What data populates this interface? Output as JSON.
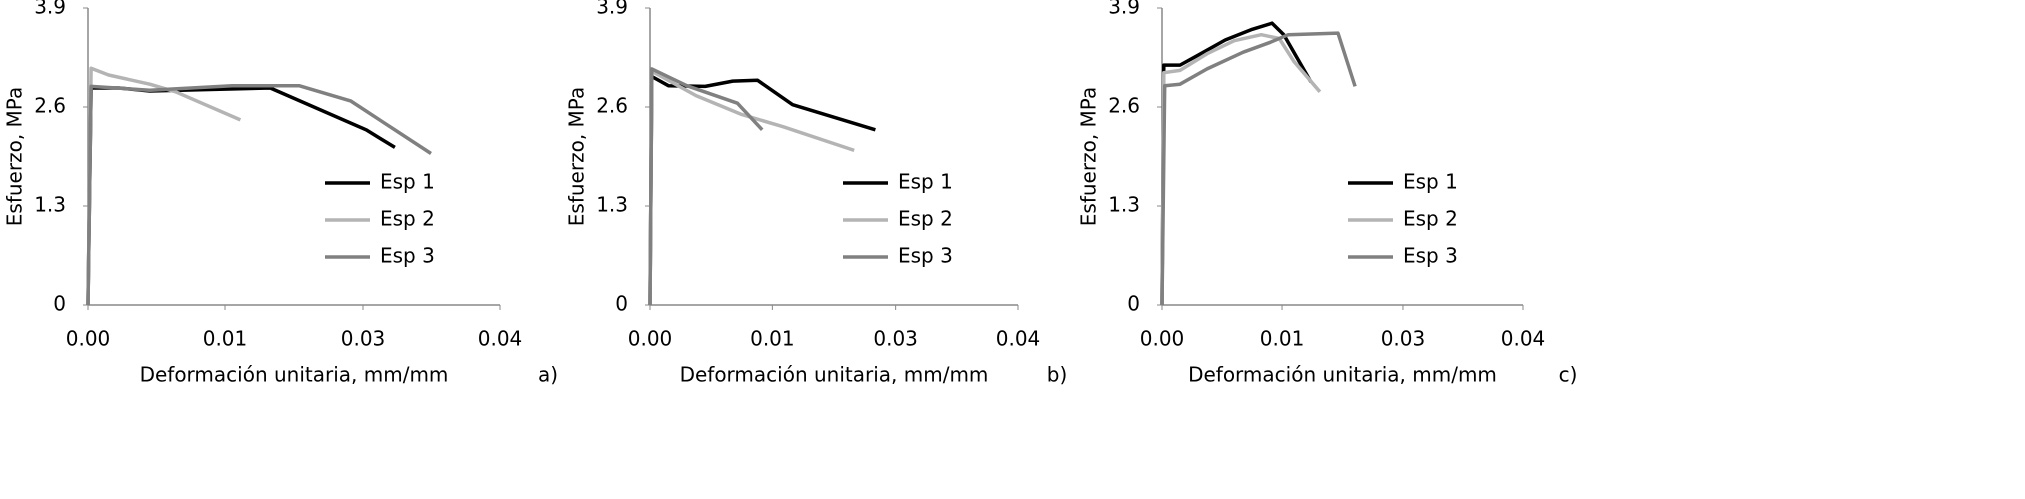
{
  "chart_data": [
    {
      "type": "line",
      "label": "a)",
      "ylabel": "Esfuerzo, MPa",
      "xlabel": "Deformación unitaria, mm/mm",
      "xlim": [
        0,
        0.04
      ],
      "xticks": [
        {
          "value": 0,
          "label": "0.00"
        },
        {
          "value": 0.0133,
          "label": "0.01"
        },
        {
          "value": 0.0267,
          "label": "0.03"
        },
        0.04
      ],
      "ylim": [
        0,
        3.9
      ],
      "yticks": [
        0,
        1.3,
        2.6,
        3.9
      ],
      "grid": false,
      "legend": "lower right",
      "series": [
        {
          "name": "Esp 1",
          "color": "#000000",
          "x": [
            0,
            0.0003,
            0.003,
            0.006,
            0.0177,
            0.027,
            0.0298
          ],
          "values": [
            0,
            2.85,
            2.85,
            2.81,
            2.85,
            2.3,
            2.07
          ]
        },
        {
          "name": "Esp 2",
          "color": "#b4b4b4",
          "x": [
            0,
            0.0003,
            0.002,
            0.006,
            0.0085,
            0.0148
          ],
          "values": [
            0,
            3.11,
            3.02,
            2.9,
            2.8,
            2.43
          ]
        },
        {
          "name": "Esp 3",
          "color": "#808080",
          "x": [
            0,
            0.0003,
            0.006,
            0.014,
            0.0205,
            0.0255,
            0.0333
          ],
          "values": [
            0,
            2.87,
            2.82,
            2.88,
            2.88,
            2.68,
            1.99
          ]
        }
      ]
    },
    {
      "type": "line",
      "label": "b)",
      "ylabel": "Esfuerzo, MPa",
      "xlabel": "Deformación unitaria, mm/mm",
      "xlim": [
        0,
        0.04
      ],
      "xticks": [
        {
          "value": 0,
          "label": "0.00"
        },
        {
          "value": 0.0133,
          "label": "0.01"
        },
        {
          "value": 0.0267,
          "label": "0.03"
        },
        0.04
      ],
      "ylim": [
        0,
        3.9
      ],
      "yticks": [
        0,
        1.3,
        2.6,
        3.9
      ],
      "grid": false,
      "legend": "lower right",
      "series": [
        {
          "name": "Esp 1",
          "color": "#000000",
          "x": [
            0,
            0.0002,
            0.002,
            0.006,
            0.009,
            0.0117,
            0.0155,
            0.0245
          ],
          "values": [
            0,
            3.0,
            2.88,
            2.87,
            2.94,
            2.95,
            2.63,
            2.3
          ]
        },
        {
          "name": "Esp 2",
          "color": "#b4b4b4",
          "x": [
            0,
            0.0002,
            0.005,
            0.01,
            0.0145,
            0.0222
          ],
          "values": [
            0,
            3.07,
            2.75,
            2.5,
            2.34,
            2.03
          ]
        },
        {
          "name": "Esp 3",
          "color": "#808080",
          "x": [
            0,
            0.0002,
            0.004,
            0.0095,
            0.0122
          ],
          "values": [
            0,
            3.1,
            2.88,
            2.65,
            2.3
          ]
        }
      ]
    },
    {
      "type": "line",
      "label": "c)",
      "ylabel": "Esfuerzo, MPa",
      "xlabel": "Deformación unitaria, mm/mm",
      "xlim": [
        0,
        0.04
      ],
      "xticks": [
        {
          "value": 0,
          "label": "0.00"
        },
        {
          "value": 0.0133,
          "label": "0.01"
        },
        {
          "value": 0.0267,
          "label": "0.03"
        },
        0.04
      ],
      "ylim": [
        0,
        3.9
      ],
      "yticks": [
        0,
        1.3,
        2.6,
        3.9
      ],
      "grid": false,
      "legend": "lower right",
      "series": [
        {
          "name": "Esp 1",
          "color": "#000000",
          "x": [
            0,
            0.0002,
            0.002,
            0.004,
            0.007,
            0.01,
            0.0122,
            0.0135,
            0.0165
          ],
          "values": [
            0,
            3.15,
            3.15,
            3.28,
            3.48,
            3.62,
            3.7,
            3.55,
            2.93
          ]
        },
        {
          "name": "Esp 2",
          "color": "#b4b4b4",
          "x": [
            0,
            0.0002,
            0.002,
            0.005,
            0.008,
            0.011,
            0.013,
            0.0146,
            0.0175
          ],
          "values": [
            0,
            3.05,
            3.08,
            3.3,
            3.47,
            3.55,
            3.5,
            3.2,
            2.8
          ]
        },
        {
          "name": "Esp 3",
          "color": "#808080",
          "x": [
            0,
            0.0003,
            0.002,
            0.005,
            0.009,
            0.012,
            0.014,
            0.0195,
            0.0214
          ],
          "values": [
            0,
            2.88,
            2.9,
            3.1,
            3.32,
            3.45,
            3.55,
            3.57,
            2.87
          ]
        }
      ]
    }
  ]
}
